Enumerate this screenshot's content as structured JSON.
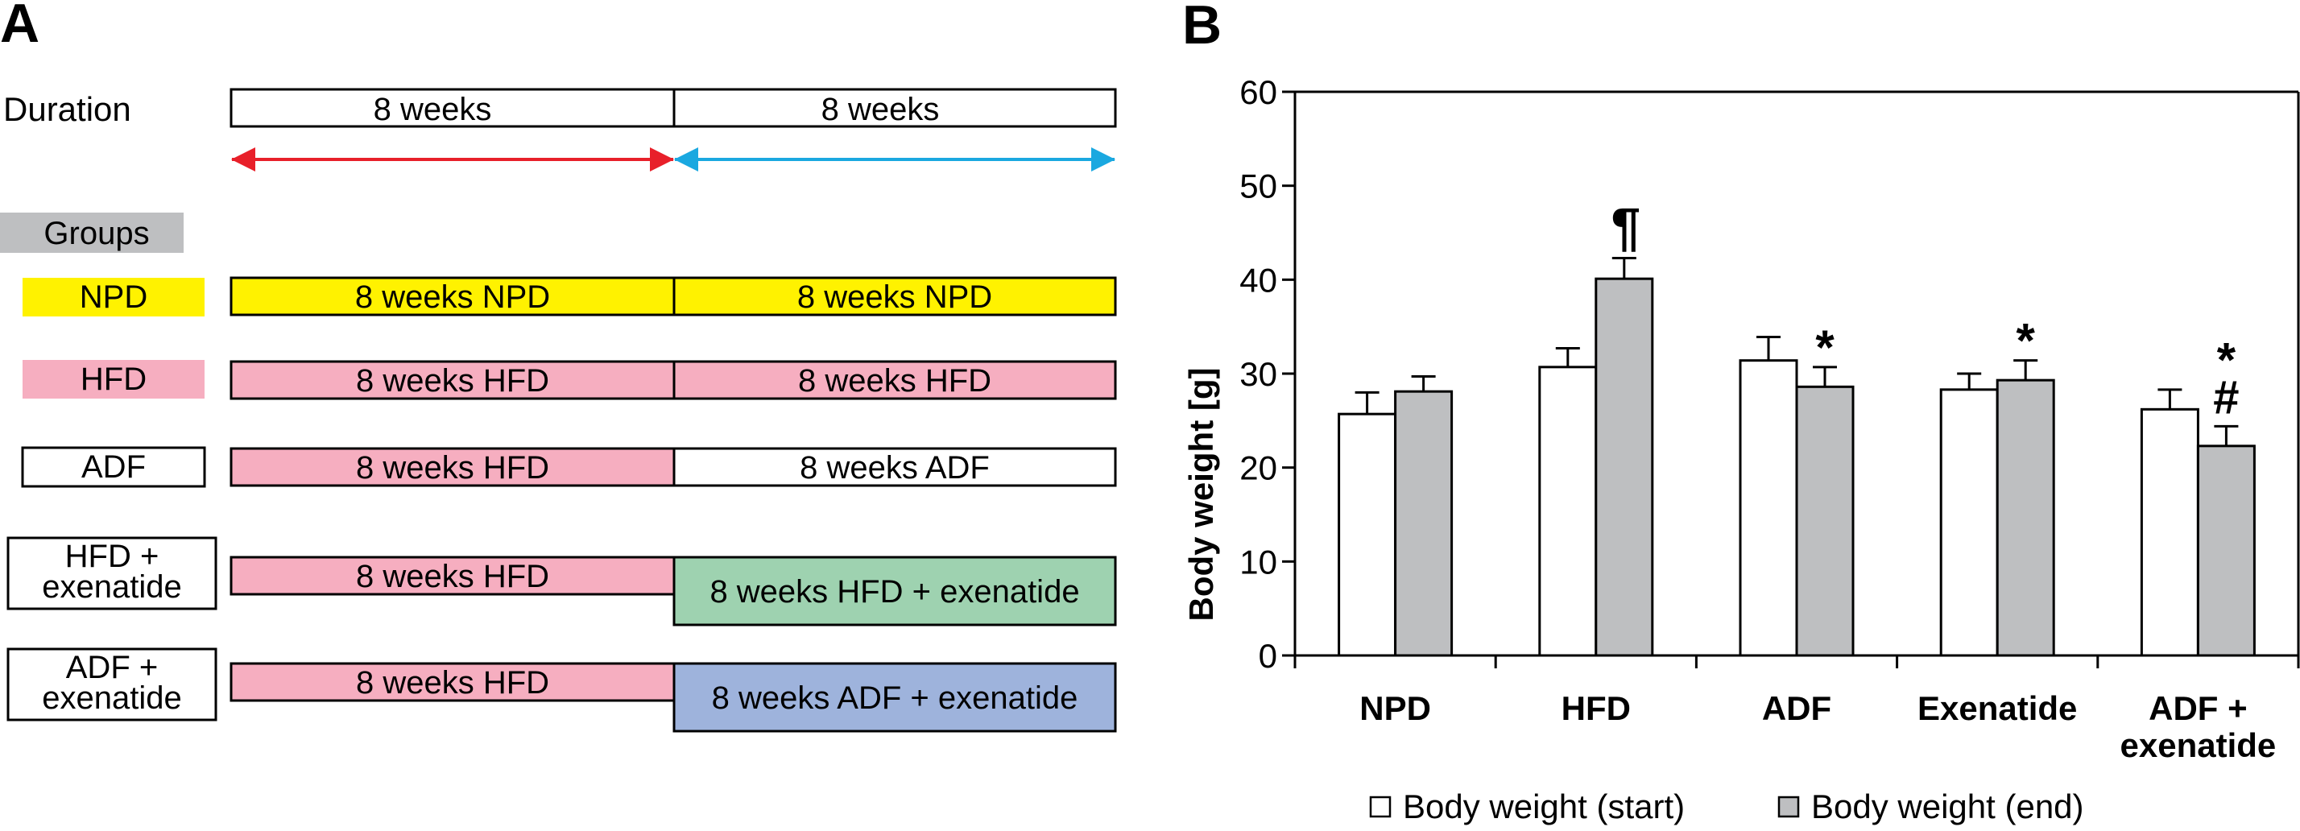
{
  "panel_a": {
    "label": "A",
    "duration_label": "Duration",
    "duration_segments": [
      "8 weeks",
      "8 weeks"
    ],
    "groups_label": "Groups",
    "groups": [
      {
        "name": "NPD",
        "name_lines": [
          "NPD"
        ],
        "name_fill": "#FFF200",
        "phase1": "8 weeks NPD",
        "phase1_fill": "#FFF200",
        "phase2": "8 weeks NPD",
        "phase2_fill": "#FFF200"
      },
      {
        "name": "HFD",
        "name_lines": [
          "HFD"
        ],
        "name_fill": "#F6AEC0",
        "phase1": "8 weeks HFD",
        "phase1_fill": "#F6AEC0",
        "phase2": "8 weeks HFD",
        "phase2_fill": "#F6AEC0"
      },
      {
        "name": "ADF",
        "name_lines": [
          "ADF"
        ],
        "name_fill": "#FFFFFF",
        "phase1": "8 weeks HFD",
        "phase1_fill": "#F6AEC0",
        "phase2": "8 weeks ADF",
        "phase2_fill": "#FFFFFF"
      },
      {
        "name": "HFD + exenatide",
        "name_lines": [
          "HFD +",
          "exenatide"
        ],
        "name_fill": "#FFFFFF",
        "phase1": "8 weeks HFD",
        "phase1_fill": "#F6AEC0",
        "phase2": "8 weeks HFD + exenatide",
        "phase2_fill": "#9ED2B0"
      },
      {
        "name": "ADF + exenatide",
        "name_lines": [
          "ADF +",
          "exenatide"
        ],
        "name_fill": "#FFFFFF",
        "phase1": "8 weeks HFD",
        "phase1_fill": "#F6AEC0",
        "phase2": "8 weeks ADF + exenatide",
        "phase2_fill": "#9EB3DC"
      }
    ],
    "colors": {
      "arrow_phase1": "#E8202A",
      "arrow_phase2": "#1AA8E0",
      "groups_box": "#BEBFC1"
    }
  },
  "panel_b": {
    "label": "B"
  },
  "chart_data": {
    "type": "bar",
    "ylabel": "Body weight [g]",
    "ylim": [
      0,
      60
    ],
    "yticks": [
      0,
      10,
      20,
      30,
      40,
      50,
      60
    ],
    "categories": [
      "NPD",
      "HFD",
      "ADF",
      "Exenatide",
      "ADF + exenatide"
    ],
    "category_label_lines": [
      [
        "NPD"
      ],
      [
        "HFD"
      ],
      [
        "ADF"
      ],
      [
        "Exenatide"
      ],
      [
        "ADF +",
        "exenatide"
      ]
    ],
    "series": [
      {
        "name": "Body weight (start)",
        "color": "#FFFFFF",
        "values": [
          25.7,
          30.7,
          31.4,
          28.3,
          26.2
        ],
        "errors": [
          2.3,
          2.0,
          2.5,
          1.7,
          2.1
        ]
      },
      {
        "name": "Body weight (end)",
        "color": "#BEBFC1",
        "values": [
          28.1,
          40.1,
          28.6,
          29.3,
          22.3
        ],
        "errors": [
          1.6,
          2.2,
          2.1,
          2.1,
          2.1
        ]
      }
    ],
    "annotations": [
      {
        "category": "HFD",
        "series": "Body weight (end)",
        "text": "¶"
      },
      {
        "category": "ADF",
        "series": "Body weight (end)",
        "text": "*"
      },
      {
        "category": "Exenatide",
        "series": "Body weight (end)",
        "text": "*"
      },
      {
        "category": "ADF + exenatide",
        "series": "Body weight (end)",
        "text": "*"
      },
      {
        "category": "ADF + exenatide",
        "series": "Body weight (end)",
        "text": "#"
      }
    ],
    "legend_position": "bottom",
    "grid": false
  }
}
